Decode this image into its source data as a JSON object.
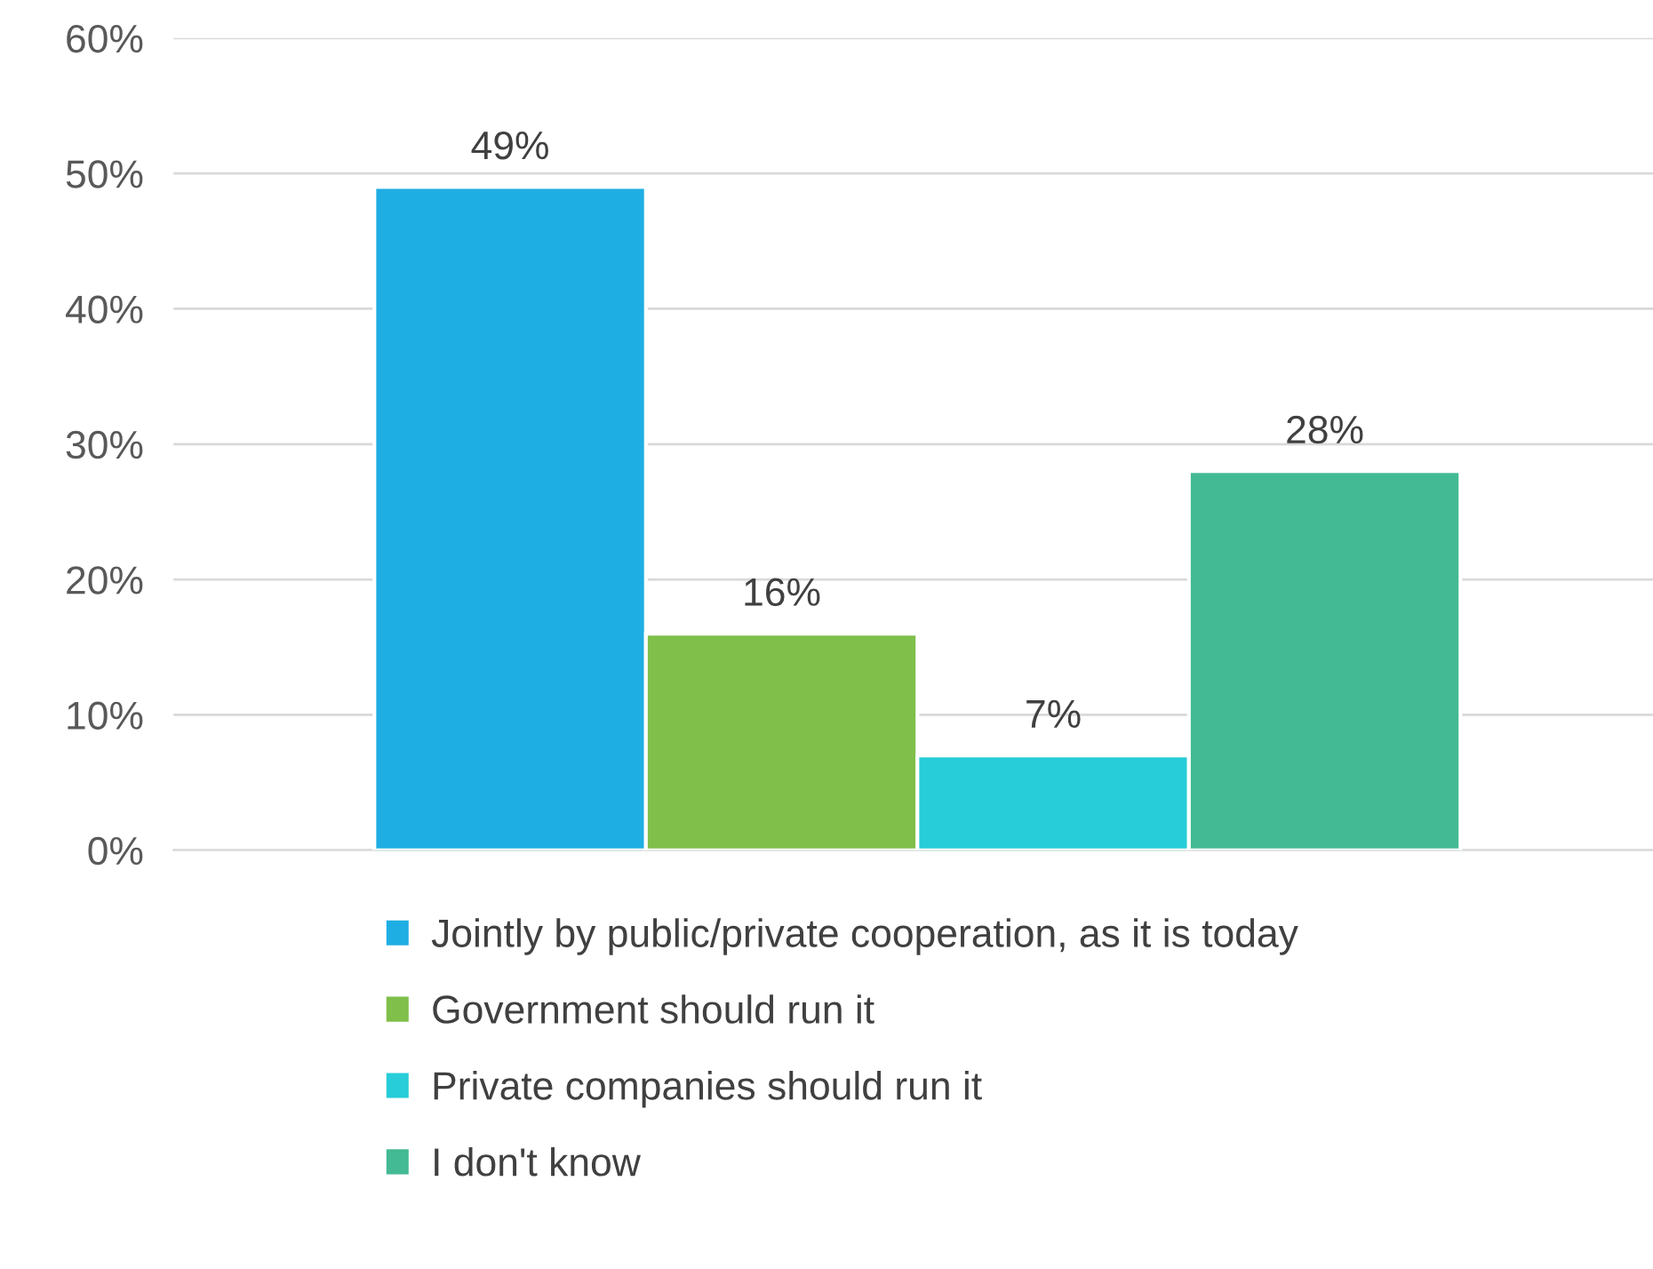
{
  "chart_data": {
    "type": "bar",
    "categories": [
      null
    ],
    "series": [
      {
        "name": "Jointly by public/private cooperation, as it is today",
        "color": "#1faee3",
        "values": [
          49
        ]
      },
      {
        "name": "Government should run it",
        "color": "#7fbf4a",
        "values": [
          16
        ]
      },
      {
        "name": "Private companies should run it",
        "color": "#27cdd8",
        "values": [
          7
        ]
      },
      {
        "name": "I don't know",
        "color": "#43ba94",
        "values": [
          28
        ]
      }
    ],
    "ylim": [
      0,
      60
    ],
    "yticks": [
      {
        "value": 0,
        "label": "0%"
      },
      {
        "value": 10,
        "label": "10%"
      },
      {
        "value": 20,
        "label": "20%"
      },
      {
        "value": 30,
        "label": "30%"
      },
      {
        "value": 40,
        "label": "40%"
      },
      {
        "value": 50,
        "label": "50%"
      },
      {
        "value": 60,
        "label": "60%"
      }
    ],
    "value_labels": [
      [
        "49%"
      ],
      [
        "16%"
      ],
      [
        "7%"
      ],
      [
        "28%"
      ]
    ],
    "grid": "y",
    "legend": "bottom"
  }
}
